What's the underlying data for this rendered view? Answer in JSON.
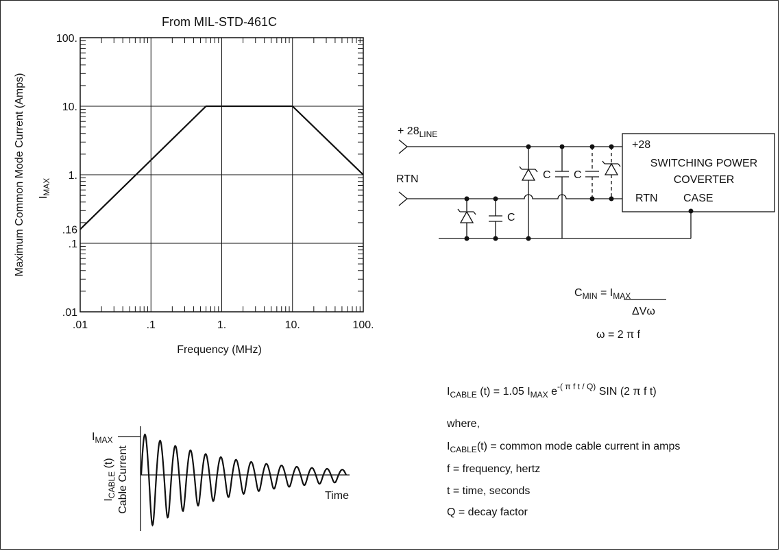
{
  "chart_data": {
    "type": "line",
    "title": "From MIL-STD-461C",
    "xlabel": "Frequency (MHz)",
    "ylabel": "Maximum Common Mode Current (Amps)",
    "ylabel2_main": "I",
    "ylabel2_sub": "MAX",
    "x_scale": "log",
    "y_scale": "log",
    "xlim": [
      0.01,
      100
    ],
    "ylim": [
      0.01,
      100
    ],
    "x_ticks": [
      {
        "value": 0.01,
        "label": ".01"
      },
      {
        "value": 0.1,
        "label": ".1"
      },
      {
        "value": 1,
        "label": "1."
      },
      {
        "value": 10,
        "label": "10."
      },
      {
        "value": 100,
        "label": "100."
      }
    ],
    "y_ticks": [
      {
        "value": 100,
        "label": "100."
      },
      {
        "value": 10,
        "label": "10."
      },
      {
        "value": 1,
        "label": "1."
      },
      {
        "value": 0.16,
        "label": ".16"
      },
      {
        "value": 0.1,
        "label": ".1"
      },
      {
        "value": 0.01,
        "label": ".01"
      }
    ],
    "grid": true,
    "series": [
      {
        "x": [
          0.01,
          0.6,
          10,
          100
        ],
        "y": [
          0.16,
          10,
          10,
          1
        ]
      }
    ]
  },
  "schematic": {
    "line_label_main": "+ 28",
    "line_label_sub": "LINE",
    "rtn_label": "RTN",
    "cap_labels": [
      "C",
      "C",
      "C"
    ],
    "converter": {
      "plus28": "+28",
      "line1": "SWITCHING POWER",
      "line2": "COVERTER",
      "rtn": "RTN",
      "case": "CASE"
    }
  },
  "formulas": {
    "cmin_main": "C",
    "cmin_sub": "MIN",
    "cmin_eq": " = ",
    "cmin_num_main": "I",
    "cmin_num_sub": "MAX",
    "cmin_den": "ΔVω",
    "omega": "ω = 2 π f",
    "icable_main": "I",
    "icable_sub": "CABLE",
    "icable_rest": " (t) = 1.05  ",
    "imax_main": "I",
    "imax_sub": "MAX",
    "exp_base": " e",
    "exp_sup": "-( π f t / Q)",
    "sin_part": " SIN (2 π f t)"
  },
  "definitions": {
    "where": "where,",
    "def1_main": "I",
    "def1_sub": "CABLE",
    "def1_rest": "(t) = common mode cable current in amps",
    "def2": "f  = frequency, hertz",
    "def3": "t  = time, seconds",
    "def4": "Q = decay factor"
  },
  "waveform": {
    "imax_main": "I",
    "imax_sub": "MAX",
    "time_label": "Time",
    "ylabel_main": "I",
    "ylabel_sub": "CABLE",
    "ylabel_rest": " (t)",
    "ylabel2": "Cable Current"
  }
}
